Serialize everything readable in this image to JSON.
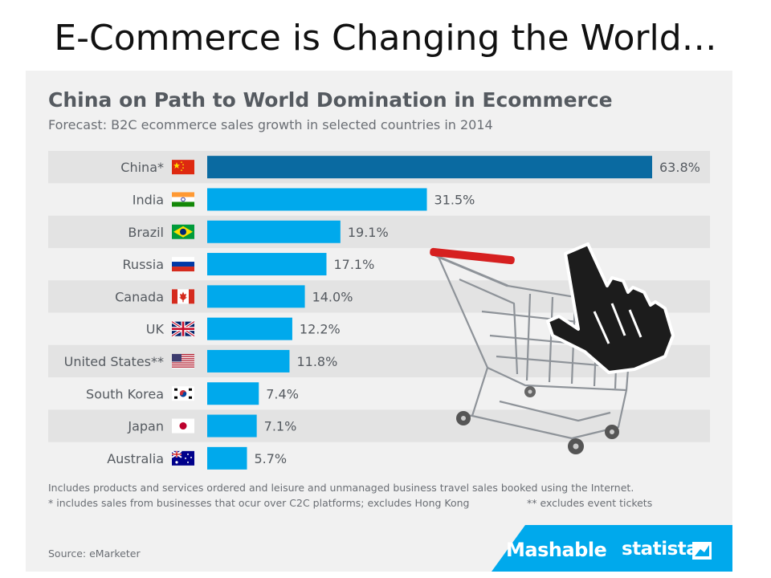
{
  "slide": {
    "title": "E-Commerce is Changing the World…"
  },
  "chart_data": {
    "type": "bar",
    "orientation": "horizontal",
    "title": "China on Path to World Domination in Ecommerce",
    "subtitle": "Forecast: B2C ecommerce sales growth in selected countries in 2014",
    "categories": [
      "China*",
      "India",
      "Brazil",
      "Russia",
      "Canada",
      "UK",
      "United States**",
      "South Korea",
      "Japan",
      "Australia"
    ],
    "values": [
      63.8,
      31.5,
      19.1,
      17.1,
      14.0,
      12.2,
      11.8,
      7.4,
      7.1,
      5.7
    ],
    "value_labels": [
      "63.8%",
      "31.5%",
      "19.1%",
      "17.1%",
      "14.0%",
      "12.2%",
      "11.8%",
      "7.4%",
      "7.1%",
      "5.7%"
    ],
    "unit": "%",
    "flags": [
      "china-flag-icon",
      "india-flag-icon",
      "brazil-flag-icon",
      "russia-flag-icon",
      "canada-flag-icon",
      "uk-flag-icon",
      "usa-flag-icon",
      "south-korea-flag-icon",
      "japan-flag-icon",
      "australia-flag-icon"
    ],
    "xlim": [
      0,
      63.8
    ],
    "grid": false,
    "legend": "none",
    "colors": {
      "highlight": "#0a6aa1",
      "bar": "#00a9ec",
      "row_stripe": "#e3e3e3",
      "label": "#555a60"
    }
  },
  "notes": {
    "line1": "Includes products and services ordered and leisure and unmanaged business travel sales booked using the Internet.",
    "line2": "* includes sales from businesses that ocur over C2C platforms; excludes Hong Kong",
    "line3": "** excludes event tickets",
    "source": "Source: eMarketer"
  },
  "branding": {
    "mashable": "Mashable",
    "statista": "statista",
    "band_color": "#00a9ec",
    "illustration": "shopping-cart-cursor-icon"
  }
}
